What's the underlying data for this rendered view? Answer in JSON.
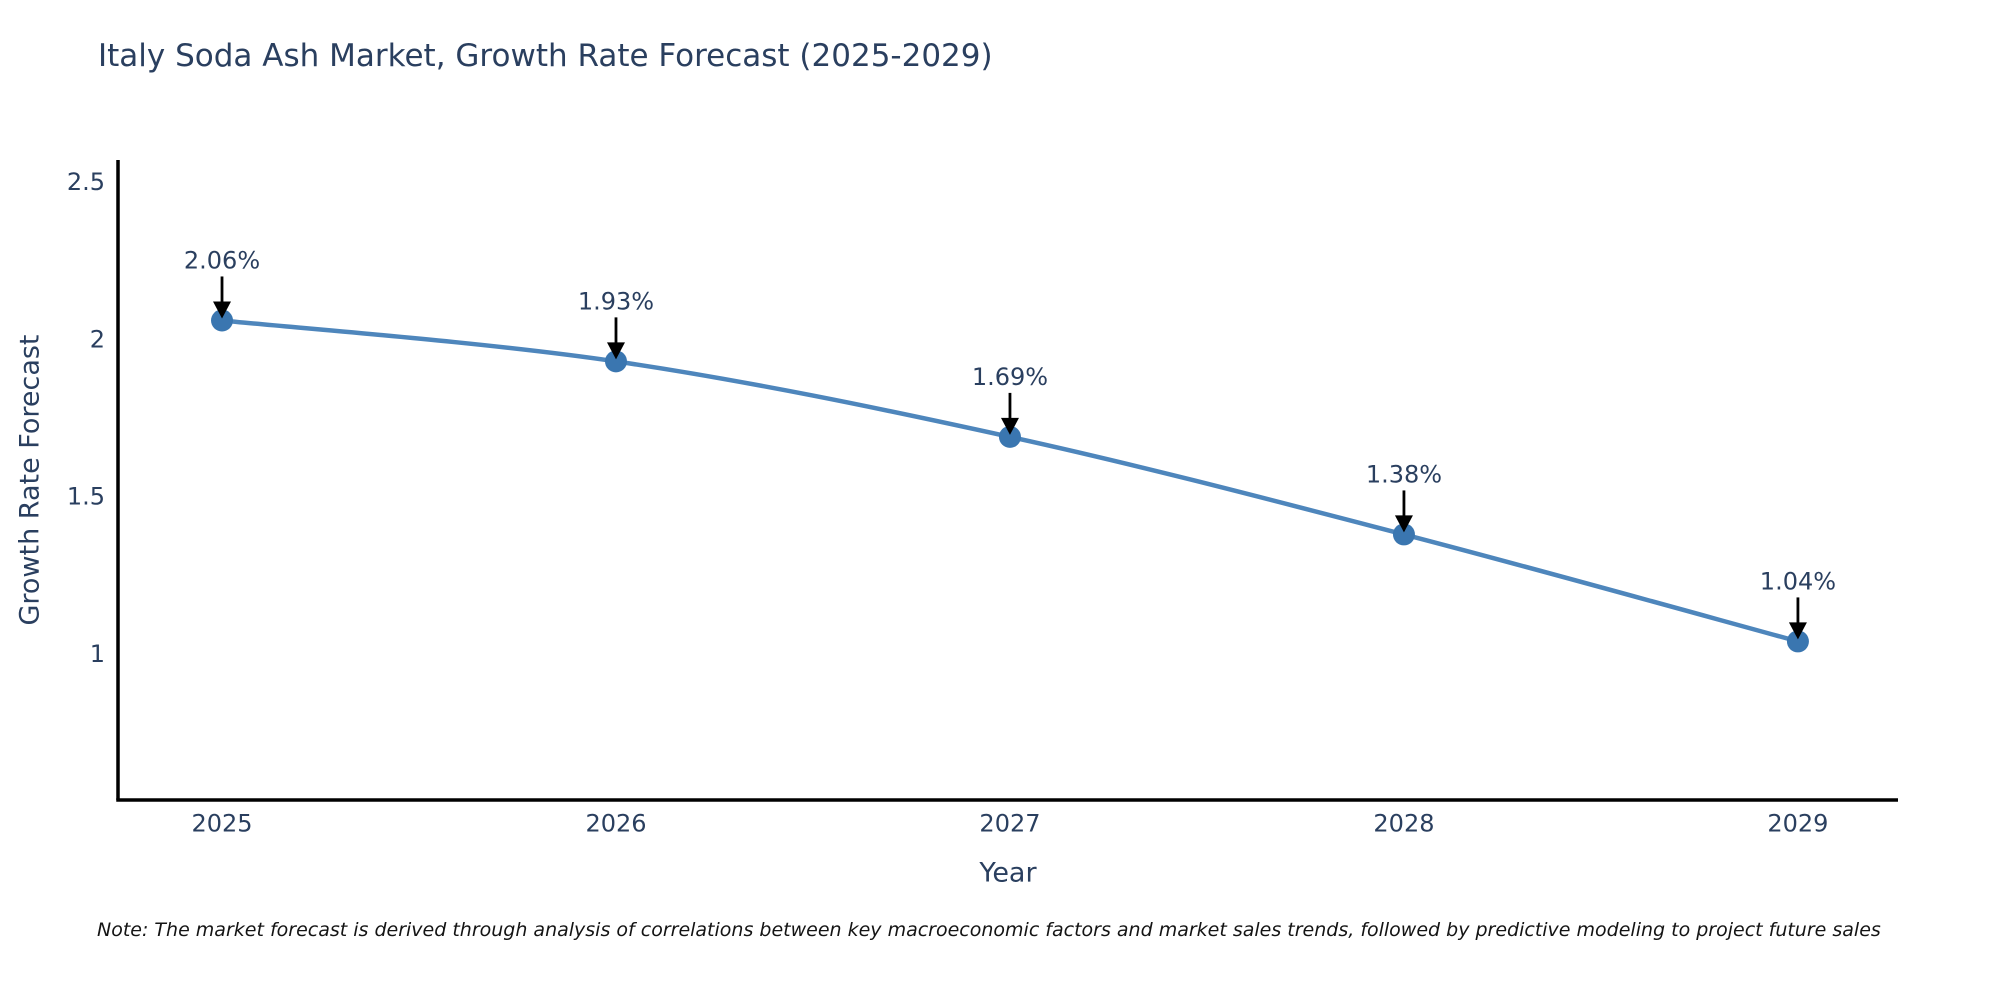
{
  "note": "Note: The market forecast is derived through analysis of correlations between key macroeconomic factors and market sales trends, followed by predictive modeling to project future sales",
  "chart_data": {
    "type": "line",
    "title": "Italy Soda Ash Market, Growth Rate Forecast (2025-2029)",
    "xlabel": "Year",
    "ylabel": "Growth Rate Forecast",
    "x": [
      2025,
      2026,
      2027,
      2028,
      2029
    ],
    "values": [
      2.06,
      1.93,
      1.69,
      1.38,
      1.04
    ],
    "point_labels": [
      "2.06%",
      "1.93%",
      "1.69%",
      "1.38%",
      "1.04%"
    ],
    "xticks": [
      "2025",
      "2026",
      "2027",
      "2028",
      "2029"
    ],
    "yticks": [
      "2.5",
      "2",
      "1.5",
      "1"
    ],
    "ytick_values": [
      2.5,
      2.0,
      1.5,
      1.0
    ],
    "xlim": [
      2024.736,
      2029.254
    ],
    "ylim": [
      0.536,
      2.57
    ],
    "grid": false,
    "legend": "none",
    "line_shape": "spline",
    "annotations_have_arrows": true,
    "colors": {
      "line": "#4e86bc",
      "marker": "#3a76b0",
      "text": "#2a3f5f",
      "axis": "#000000",
      "arrow": "#000000",
      "background": "#ffffff"
    }
  }
}
